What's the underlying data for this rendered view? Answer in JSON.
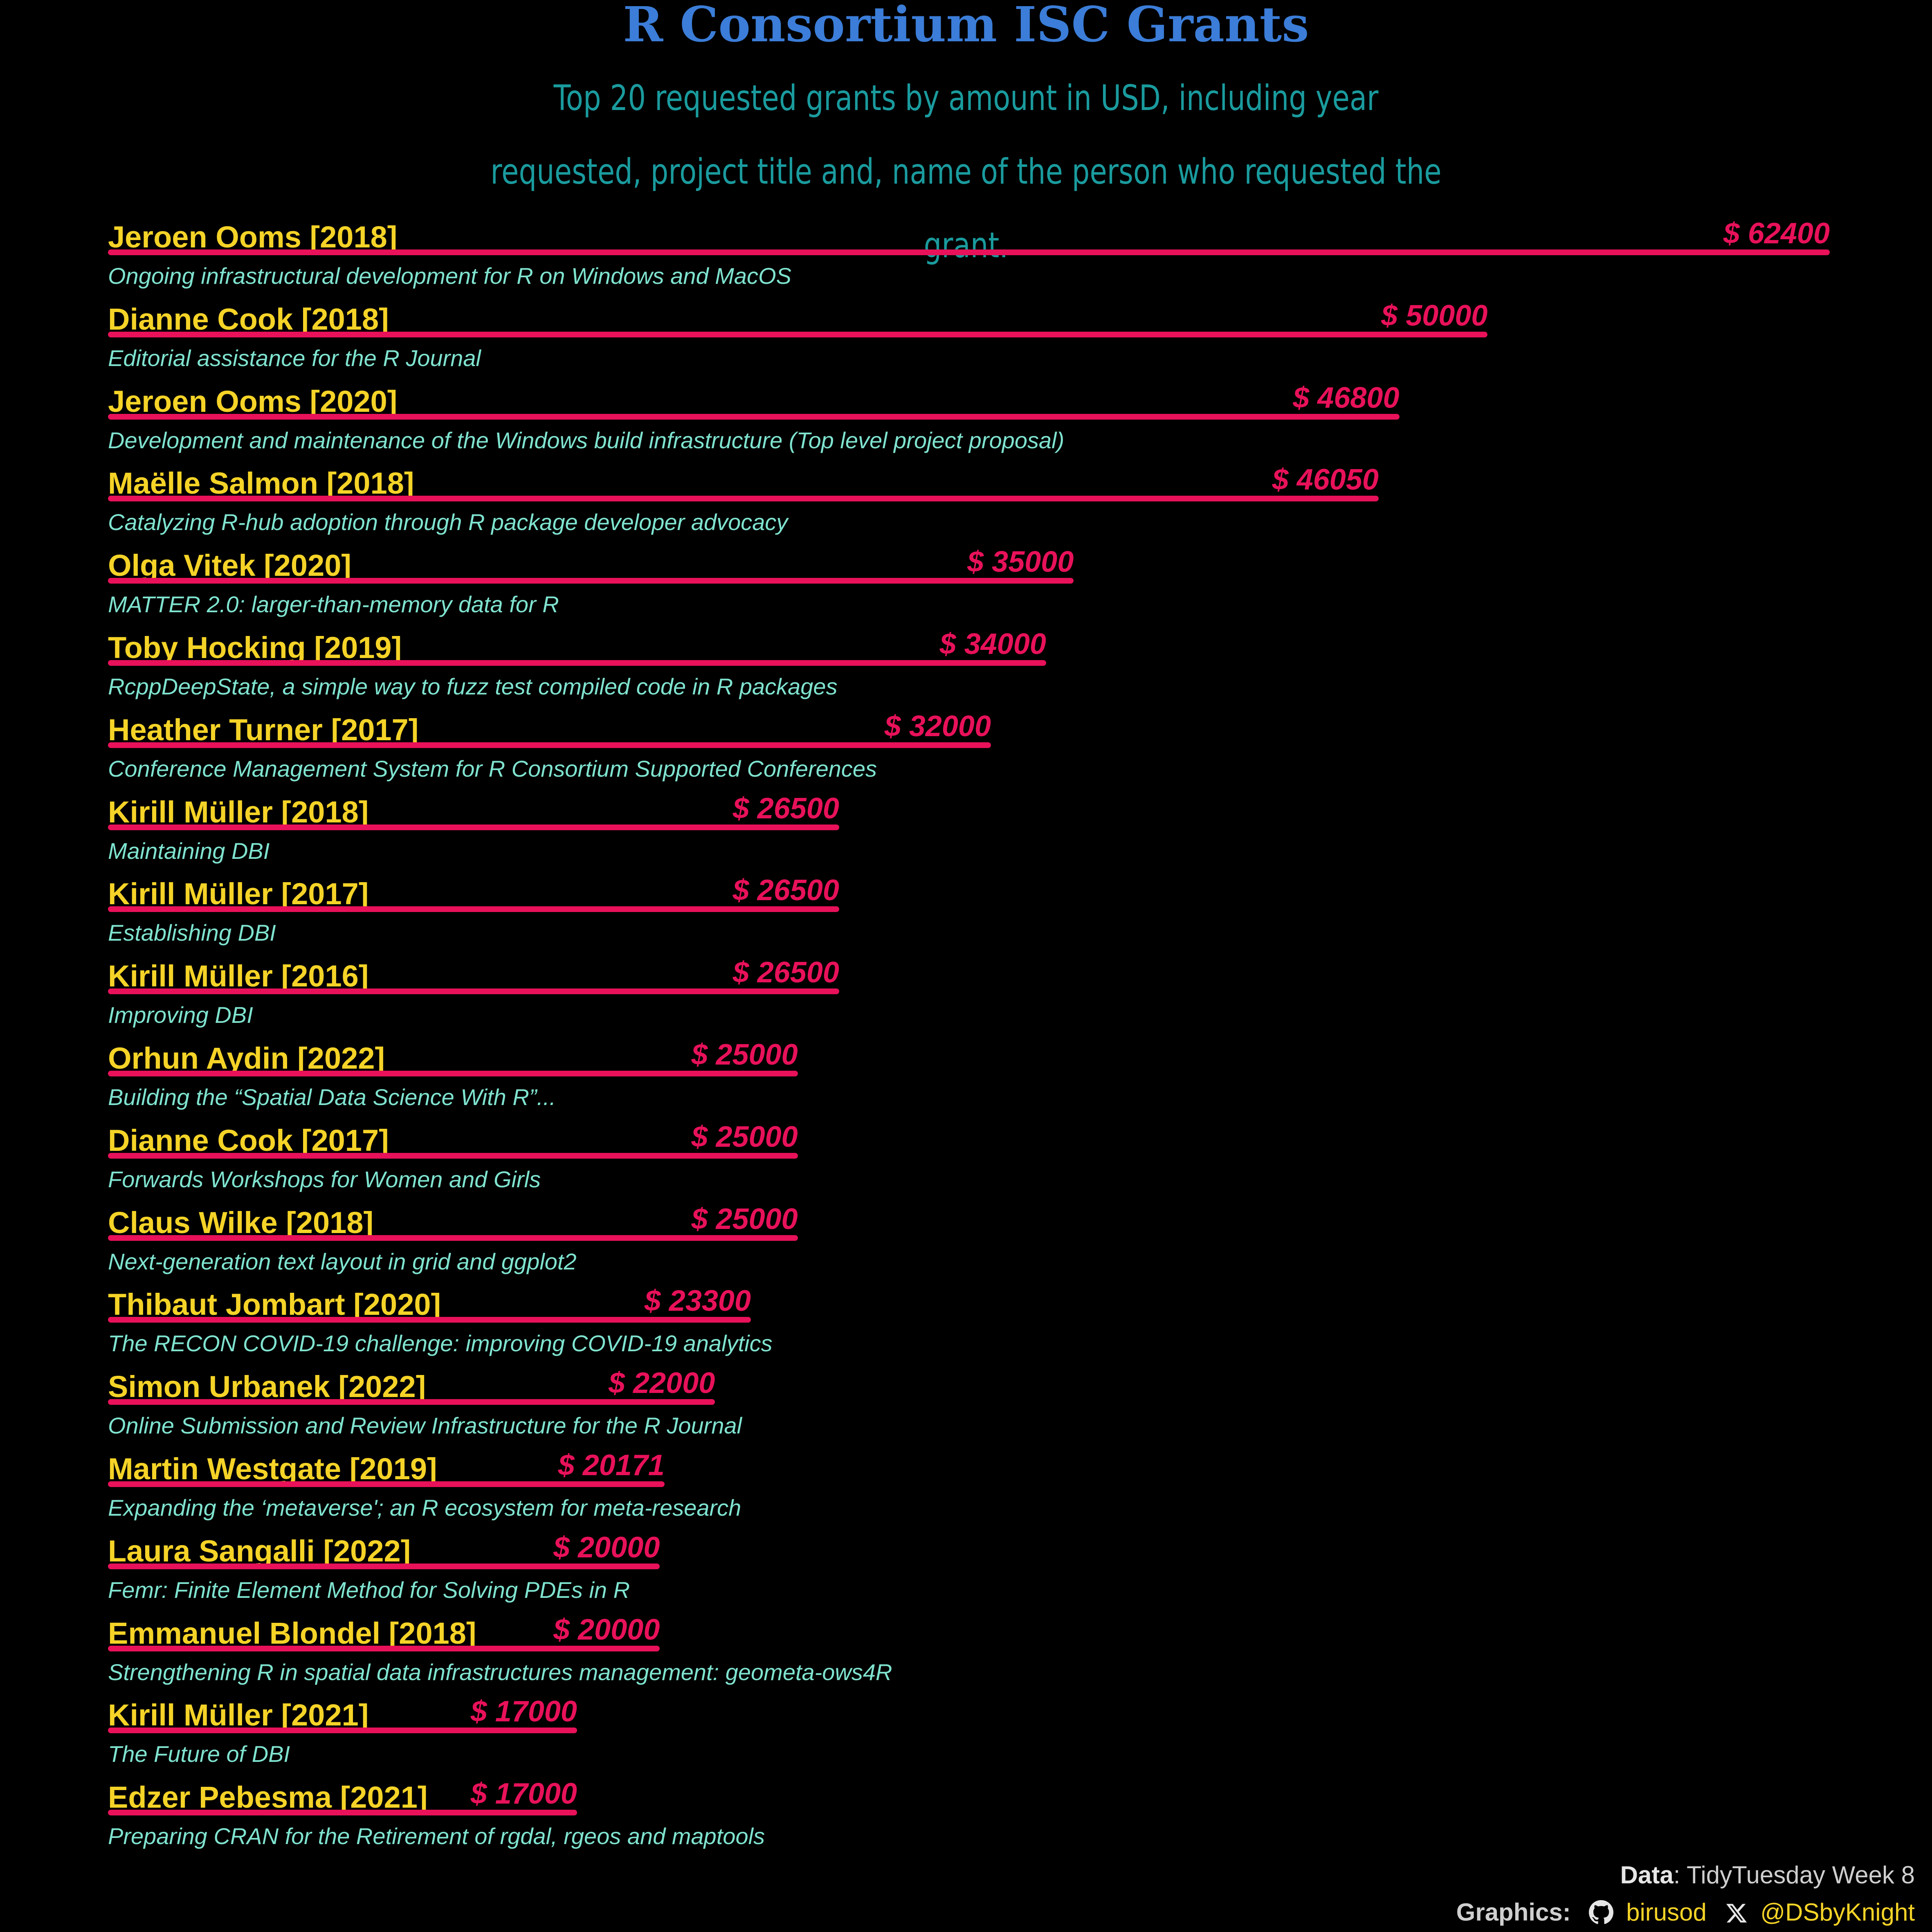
{
  "chart_data": {
    "type": "bar",
    "orientation": "horizontal",
    "title": "R Consortium ISC Grants",
    "subtitle": "Top 20 requested grants by amount in USD, including year requested, project title and, name of the person who requested the grant.",
    "value_prefix": "$ ",
    "xlim": [
      0,
      62400
    ],
    "grid": false,
    "bars": [
      {
        "label": "Jeroen Ooms [2018]",
        "value": 62400,
        "value_label": "$ 62400",
        "title": "Ongoing infrastructural development for R on Windows and MacOS"
      },
      {
        "label": "Dianne Cook [2018]",
        "value": 50000,
        "value_label": "$ 50000",
        "title": "Editorial assistance for the R Journal"
      },
      {
        "label": "Jeroen Ooms [2020]",
        "value": 46800,
        "value_label": "$ 46800",
        "title": "Development and maintenance of the Windows build infrastructure (Top level project proposal)"
      },
      {
        "label": "Maëlle Salmon [2018]",
        "value": 46050,
        "value_label": "$ 46050",
        "title": "Catalyzing R-hub adoption through R package developer advocacy"
      },
      {
        "label": "Olga Vitek [2020]",
        "value": 35000,
        "value_label": "$ 35000",
        "title": "MATTER 2.0: larger-than-memory data for R"
      },
      {
        "label": "Toby Hocking [2019]",
        "value": 34000,
        "value_label": "$ 34000",
        "title": "RcppDeepState, a simple way to fuzz test compiled code in R packages"
      },
      {
        "label": "Heather Turner [2017]",
        "value": 32000,
        "value_label": "$ 32000",
        "title": "Conference Management System for R Consortium Supported Conferences"
      },
      {
        "label": "Kirill Müller [2018]",
        "value": 26500,
        "value_label": "$ 26500",
        "title": "Maintaining DBI"
      },
      {
        "label": "Kirill Müller [2017]",
        "value": 26500,
        "value_label": "$ 26500",
        "title": "Establishing DBI"
      },
      {
        "label": "Kirill Müller [2016]",
        "value": 26500,
        "value_label": "$ 26500",
        "title": "Improving DBI"
      },
      {
        "label": "Orhun Aydin [2022]",
        "value": 25000,
        "value_label": "$ 25000",
        "title": "Building the “Spatial Data Science With R”..."
      },
      {
        "label": "Dianne Cook [2017]",
        "value": 25000,
        "value_label": "$ 25000",
        "title": "Forwards Workshops for Women and Girls"
      },
      {
        "label": "Claus Wilke [2018]",
        "value": 25000,
        "value_label": "$ 25000",
        "title": "Next-generation text layout in grid and ggplot2"
      },
      {
        "label": "Thibaut Jombart [2020]",
        "value": 23300,
        "value_label": "$ 23300",
        "title": "The RECON COVID-19 challenge: improving COVID-19 analytics"
      },
      {
        "label": "Simon Urbanek [2022]",
        "value": 22000,
        "value_label": "$ 22000",
        "title": "Online Submission and Review Infrastructure for the R Journal"
      },
      {
        "label": "Martin Westgate [2019]",
        "value": 20171,
        "value_label": "$ 20171",
        "title": "Expanding the ‘metaverse'; an R ecosystem for meta-research"
      },
      {
        "label": "Laura Sangalli [2022]",
        "value": 20000,
        "value_label": "$ 20000",
        "title": "Femr: Finite Element Method for Solving PDEs in R"
      },
      {
        "label": "Emmanuel Blondel [2018]",
        "value": 20000,
        "value_label": "$ 20000",
        "title": "Strengthening R in spatial data infrastructures management: geometa-ows4R"
      },
      {
        "label": "Kirill Müller [2021]",
        "value": 17000,
        "value_label": "$ 17000",
        "title": "The Future of DBI"
      },
      {
        "label": "Edzer Pebesma [2021]",
        "value": 17000,
        "value_label": "$ 17000",
        "title": "Preparing CRAN for the Retirement of rgdal, rgeos and maptools"
      }
    ],
    "colors": {
      "background": "#000000",
      "title": "#3b7dd8",
      "subtitle": "#1a9b9e",
      "name_label": "#f5d327",
      "bar": "#e8115a",
      "value_label": "#e8115a",
      "project_title": "#7fe3cf"
    }
  },
  "caption": {
    "data_label": "Data",
    "data_source": ": TidyTuesday Week 8",
    "graphics_label": "Graphics:",
    "github_icon": "github-icon",
    "github_handle": "birusod",
    "x_icon": "x-icon",
    "x_handle": "@DSbyKnight"
  }
}
